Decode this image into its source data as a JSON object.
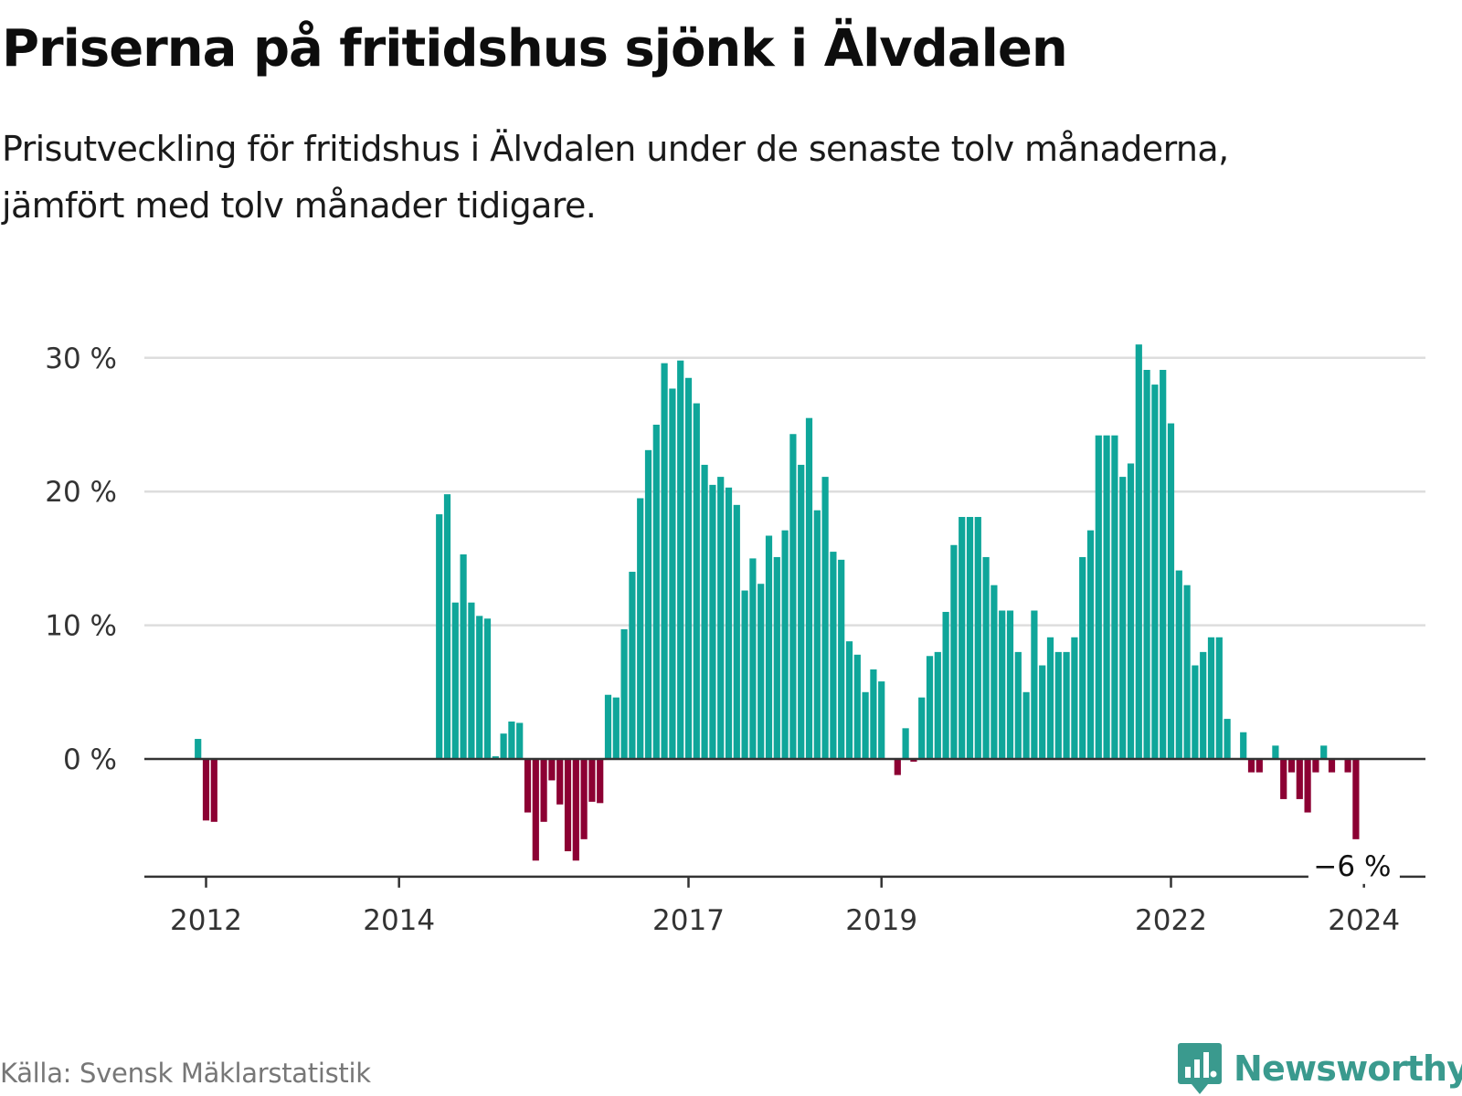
{
  "title": "Priserna på fritidshus sjönk i Älvdalen",
  "subtitle_lines": [
    "Prisutveckling för fritidshus i Älvdalen under de senaste tolv månaderna,",
    "jämfört med tolv månader tidigare."
  ],
  "source": "Källa: Svensk Mäklarstatistik",
  "brand": "Newsworthy",
  "colors": {
    "positive": "#0fa69a",
    "negative": "#8c0033",
    "grid": "#dddddd",
    "axis": "#333333",
    "brand": "#3a9a8e"
  },
  "chart_data": {
    "type": "bar",
    "unit": "%",
    "yticks": [
      0,
      10,
      20,
      30
    ],
    "ytick_labels": [
      "0 %",
      "10 %",
      "20 %",
      "30 %"
    ],
    "ylim": [
      -8.8,
      30
    ],
    "xticks": [
      {
        "label": "2012",
        "index": 0
      },
      {
        "label": "2014",
        "index": 24
      },
      {
        "label": "2017",
        "index": 60
      },
      {
        "label": "2019",
        "index": 84
      },
      {
        "label": "2022",
        "index": 120
      },
      {
        "label": "2024",
        "index": 144
      }
    ],
    "last_value_label": "−6 %",
    "start_index": -1,
    "values": [
      1.5,
      -4.6,
      -4.7,
      null,
      null,
      null,
      null,
      null,
      null,
      null,
      null,
      null,
      null,
      null,
      null,
      null,
      null,
      null,
      null,
      null,
      null,
      null,
      null,
      null,
      null,
      null,
      null,
      null,
      null,
      null,
      18.3,
      19.8,
      11.7,
      15.3,
      11.7,
      10.7,
      10.5,
      0.2,
      1.9,
      2.8,
      2.7,
      -4.0,
      -7.6,
      -4.7,
      -1.6,
      -3.4,
      -6.9,
      -7.6,
      -6.0,
      -3.2,
      -3.3,
      4.8,
      4.6,
      9.7,
      14.0,
      19.5,
      23.1,
      25.0,
      29.6,
      27.7,
      29.8,
      28.5,
      26.6,
      22.0,
      20.5,
      21.1,
      20.3,
      19.0,
      12.6,
      15.0,
      13.1,
      16.7,
      15.1,
      17.1,
      24.3,
      22.0,
      25.5,
      18.6,
      21.1,
      15.5,
      14.9,
      8.8,
      7.8,
      5.0,
      6.7,
      5.8,
      null,
      -1.2,
      2.3,
      -0.2,
      4.6,
      7.7,
      8.0,
      11.0,
      16.0,
      18.1,
      18.1,
      18.1,
      15.1,
      13.0,
      11.1,
      11.1,
      8.0,
      5.0,
      11.1,
      7.0,
      9.1,
      8.0,
      8.0,
      9.1,
      15.1,
      17.1,
      24.2,
      24.2,
      24.2,
      21.1,
      22.1,
      31.0,
      29.1,
      28.0,
      29.1,
      25.1,
      14.1,
      13.0,
      7.0,
      8.0,
      9.1,
      9.1,
      3.0,
      null,
      2.0,
      -1.0,
      -1.0,
      null,
      1.0,
      -3.0,
      -1.0,
      -3.0,
      -4.0,
      -1.0,
      1.0,
      -1.0,
      null,
      -1.0,
      -6.0
    ]
  }
}
